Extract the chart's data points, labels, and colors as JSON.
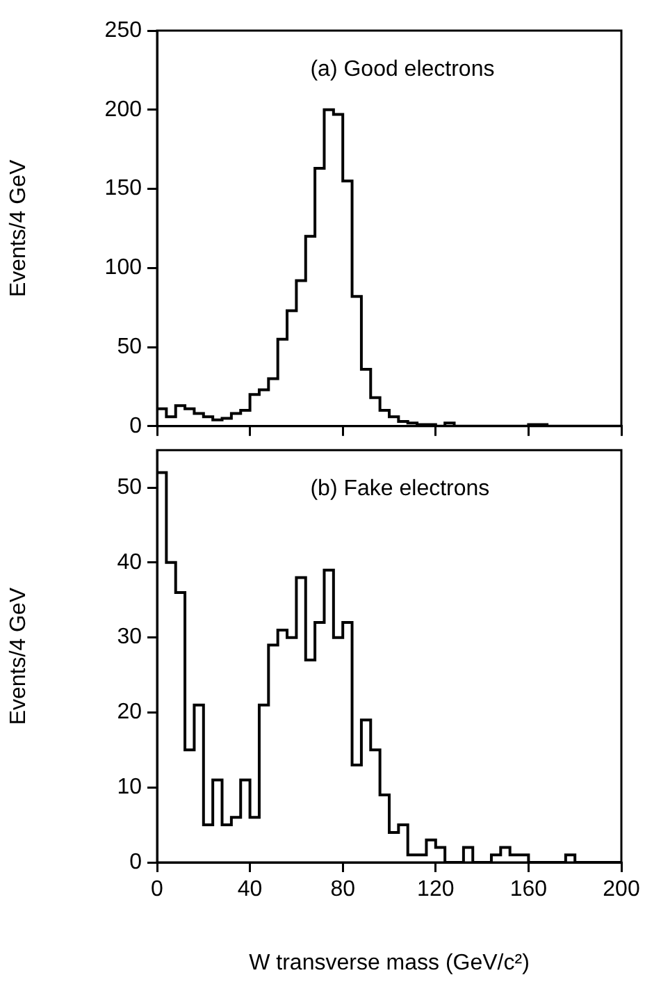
{
  "chart_data": [
    {
      "type": "histogram",
      "ylabel": "Events/4 GeV",
      "annotations": [
        "(a) Good electrons"
      ],
      "color": "#000000",
      "bins": [
        0,
        4,
        8,
        12,
        16,
        20,
        24,
        28,
        32,
        36,
        40,
        44,
        48,
        52,
        56,
        60,
        64,
        68,
        72,
        76,
        80,
        84,
        88,
        92,
        96,
        100,
        104,
        108,
        112,
        116,
        120,
        124,
        128,
        132,
        136,
        140,
        144,
        148,
        152,
        156,
        160,
        164,
        168,
        172,
        176,
        180,
        184,
        188,
        192,
        196,
        200
      ],
      "values": [
        11,
        6,
        13,
        11,
        8,
        6,
        4,
        5,
        8,
        10,
        20,
        23,
        30,
        55,
        73,
        92,
        120,
        163,
        200,
        197,
        155,
        82,
        36,
        18,
        10,
        6,
        3,
        2,
        1,
        1,
        0,
        2,
        0,
        0,
        0,
        0,
        0,
        0,
        0,
        0,
        1,
        1,
        0,
        0,
        0,
        0,
        0,
        0,
        0,
        0
      ],
      "xlim": [
        0,
        200
      ],
      "xticks": [
        {
          "value": 0,
          "label": null
        },
        {
          "value": 40,
          "label": null
        },
        {
          "value": 80,
          "label": null
        },
        {
          "value": 120,
          "label": null
        },
        {
          "value": 160,
          "label": null
        },
        {
          "value": 200,
          "label": null
        }
      ],
      "ylim": [
        0,
        250
      ],
      "yticks": [
        0,
        50,
        100,
        150,
        200,
        250
      ],
      "tick_labels": "y"
    },
    {
      "type": "histogram",
      "ylabel": "Events/4 GeV",
      "xlabel": "W transverse mass (GeV/c²)",
      "annotations": [
        "(b) Fake electrons"
      ],
      "color": "#000000",
      "bins": [
        0,
        4,
        8,
        12,
        16,
        20,
        24,
        28,
        32,
        36,
        40,
        44,
        48,
        52,
        56,
        60,
        64,
        68,
        72,
        76,
        80,
        84,
        88,
        92,
        96,
        100,
        104,
        108,
        112,
        116,
        120,
        124,
        128,
        132,
        136,
        140,
        144,
        148,
        152,
        156,
        160,
        164,
        168,
        172,
        176,
        180,
        184,
        188,
        192,
        196,
        200
      ],
      "values": [
        52,
        40,
        36,
        15,
        21,
        5,
        11,
        5,
        6,
        11,
        6,
        21,
        29,
        31,
        30,
        38,
        27,
        32,
        39,
        30,
        32,
        13,
        19,
        15,
        9,
        4,
        5,
        1,
        1,
        3,
        2,
        0,
        0,
        2,
        0,
        0,
        1,
        2,
        1,
        1,
        0,
        0,
        0,
        0,
        1,
        0,
        0,
        0,
        0,
        0
      ],
      "xlim": [
        0,
        200
      ],
      "xticks": [
        0,
        40,
        80,
        120,
        160,
        200
      ],
      "ylim": [
        0,
        55
      ],
      "yticks": [
        0,
        10,
        20,
        30,
        40,
        50
      ]
    }
  ]
}
